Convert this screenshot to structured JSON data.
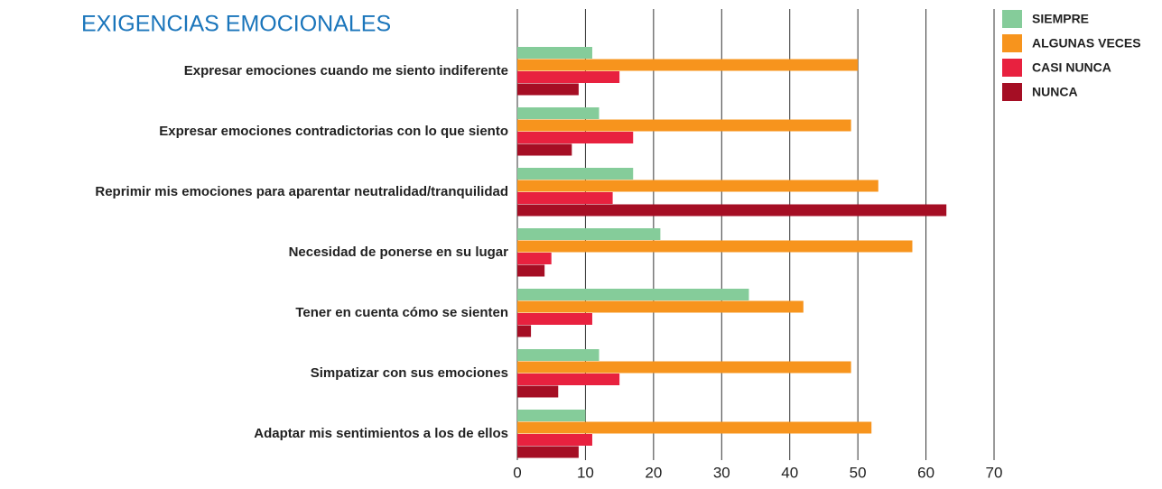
{
  "chart_data": {
    "type": "bar",
    "orientation": "horizontal",
    "title": "EXIGENCIAS EMOCIONALES",
    "categories": [
      "Expresar emociones cuando me siento indiferente",
      "Expresar emociones contradictorias con lo que siento",
      "Reprimir mis emociones para aparentar neutralidad/tranquilidad",
      "Necesidad de ponerse en su lugar",
      "Tener en cuenta cómo se sienten",
      "Simpatizar con sus emociones",
      "Adaptar mis sentimientos a los de ellos"
    ],
    "series": [
      {
        "name": "SIEMPRE",
        "color": "#85cc9a",
        "values": [
          11,
          12,
          17,
          21,
          34,
          12,
          10
        ]
      },
      {
        "name": "ALGUNAS VECES",
        "color": "#f7941d",
        "values": [
          50,
          49,
          53,
          58,
          42,
          49,
          52
        ]
      },
      {
        "name": "CASI NUNCA",
        "color": "#e8213f",
        "values": [
          15,
          17,
          14,
          5,
          11,
          15,
          11
        ]
      },
      {
        "name": "NUNCA",
        "color": "#a50e24",
        "values": [
          9,
          8,
          63,
          4,
          2,
          6,
          9
        ]
      }
    ],
    "xlim": [
      0,
      70
    ],
    "xticks": [
      0,
      10,
      20,
      30,
      40,
      50,
      60,
      70
    ],
    "grid": true,
    "legend": "right"
  }
}
